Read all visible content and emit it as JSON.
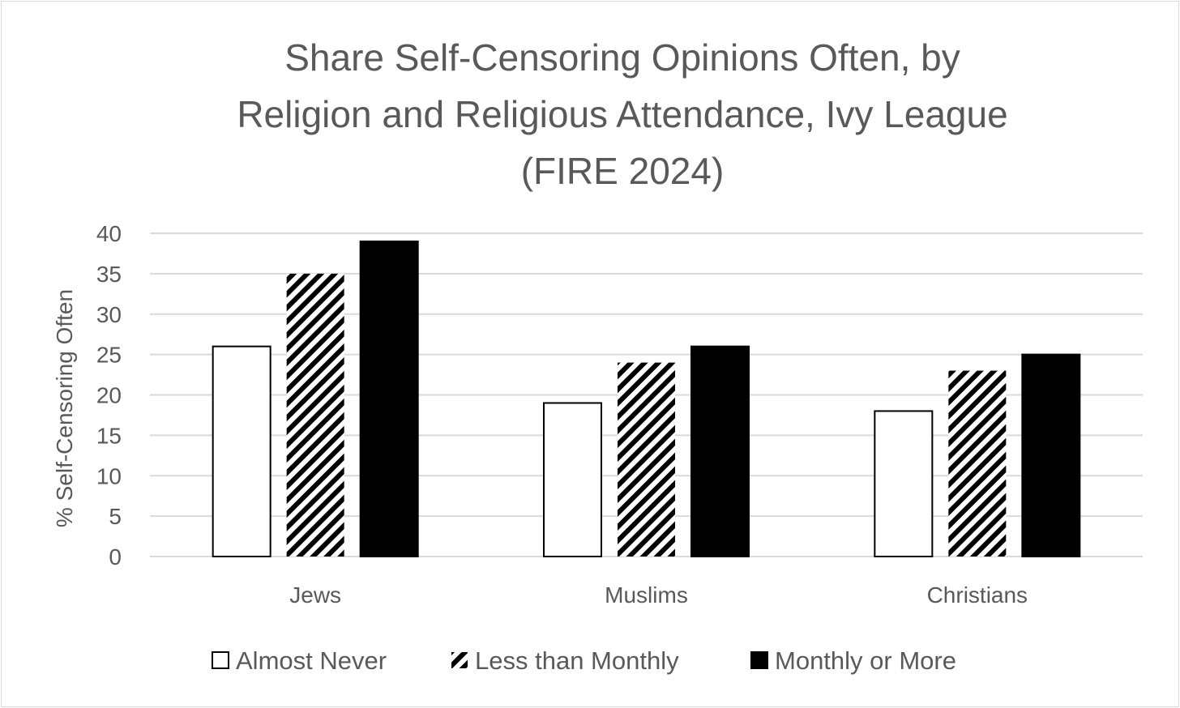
{
  "chart_data": {
    "type": "bar",
    "title_lines": [
      "Share Self-Censoring Opinions Often, by",
      "Religion and Religious Attendance, Ivy League",
      "(FIRE 2024)"
    ],
    "xlabel": "",
    "ylabel": "% Self-Censoring Often",
    "ylim": [
      0,
      40
    ],
    "yticks": [
      0,
      5,
      10,
      15,
      20,
      25,
      30,
      35,
      40
    ],
    "grid": true,
    "legend_position": "bottom",
    "categories": [
      "Jews",
      "Muslims",
      "Christians"
    ],
    "series": [
      {
        "name": "Almost Never",
        "fill": "white",
        "values": [
          26,
          19,
          18
        ]
      },
      {
        "name": "Less than Monthly",
        "fill": "diagonal-hatch",
        "values": [
          35,
          24,
          23
        ]
      },
      {
        "name": "Monthly or More",
        "fill": "black",
        "values": [
          39,
          26,
          25
        ]
      }
    ]
  },
  "colors": {
    "text": "#595959",
    "grid": "#d9d9d9",
    "bar_outline": "#000000",
    "solid_fill": "#000000"
  }
}
